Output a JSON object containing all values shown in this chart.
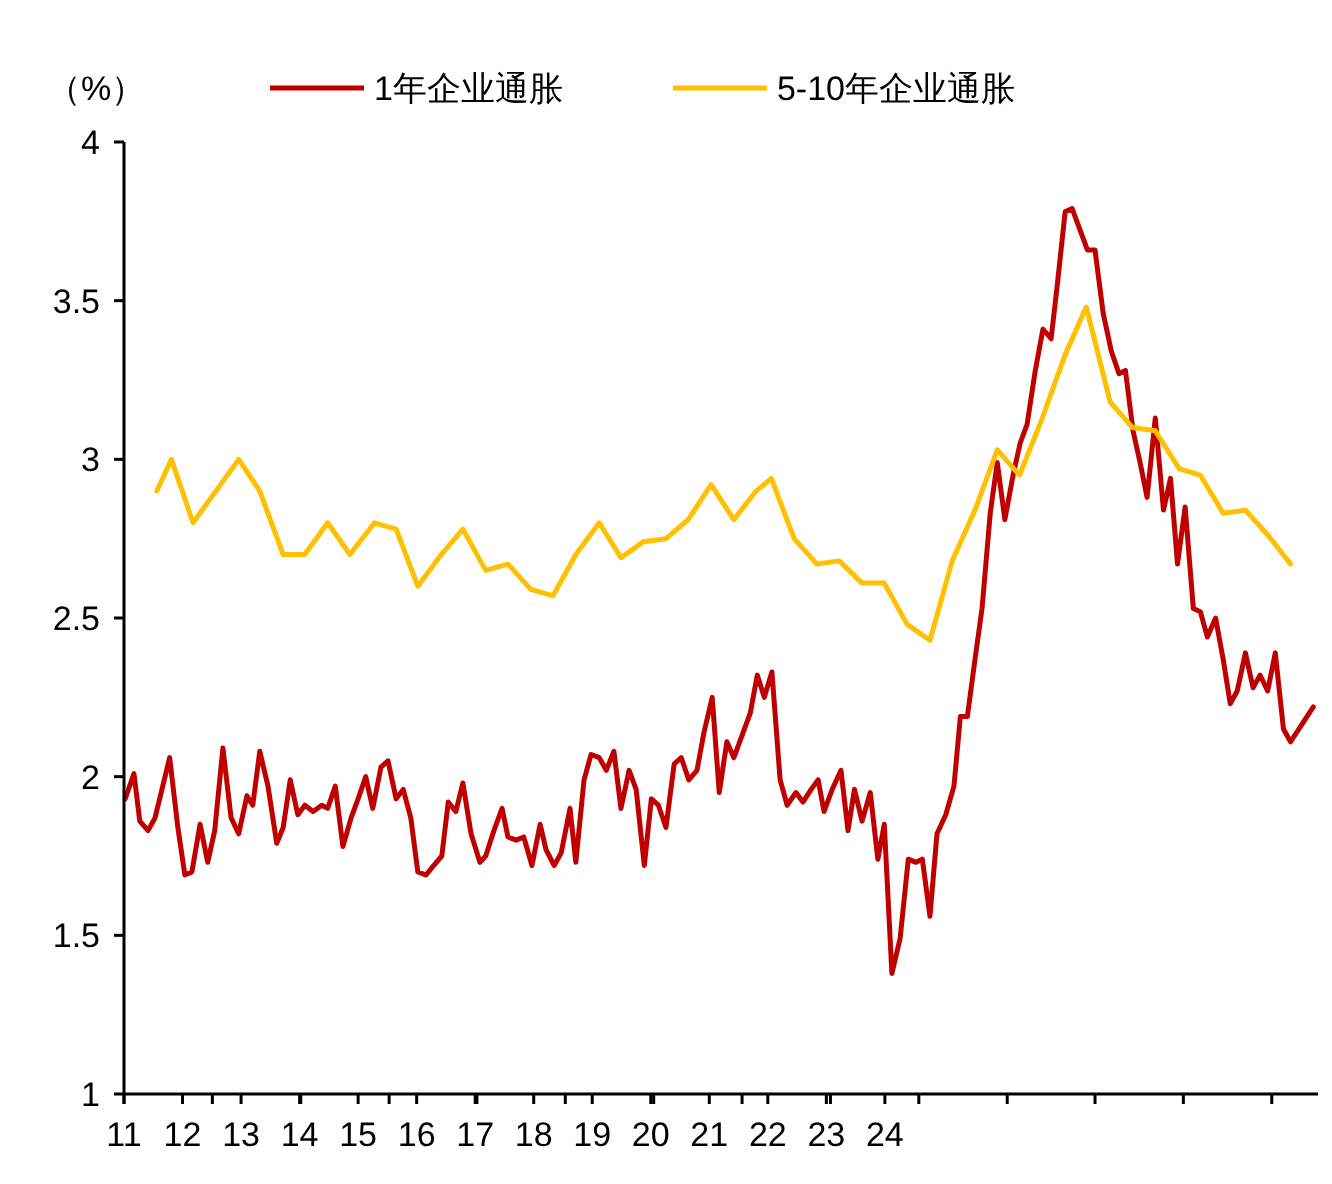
{
  "chart_data": {
    "type": "line",
    "ylabel": "（%）",
    "legend": "top",
    "grid": false,
    "xlim": [
      11,
      31.4
    ],
    "ylim": [
      1,
      4
    ],
    "yticks": [
      1,
      1.5,
      2,
      2.5,
      3,
      3.5,
      4
    ],
    "xticks": [
      {
        "value": 11,
        "label": null
      },
      {
        "value": 12.51,
        "label": null
      },
      {
        "value": 14.02,
        "label": null
      },
      {
        "value": 15.53,
        "label": null
      },
      {
        "value": 17.03,
        "label": null
      },
      {
        "value": 18.54,
        "label": null
      },
      {
        "value": 20.05,
        "label": null
      },
      {
        "value": 21.56,
        "label": null
      },
      {
        "value": 23.07,
        "label": null
      },
      {
        "value": 24.58,
        "label": null
      },
      {
        "value": 26.09,
        "label": null
      },
      {
        "value": 27.59,
        "label": null
      },
      {
        "value": 29.1,
        "label": null
      },
      {
        "value": 30.61,
        "label": null
      },
      11,
      12,
      13,
      14,
      15,
      16,
      17,
      18,
      19,
      20,
      21,
      22,
      23,
      24
    ],
    "series": [
      {
        "name": "1年企业通胀",
        "color": "#c00000",
        "x": [
          11.02,
          11.17,
          11.27,
          11.41,
          11.53,
          11.78,
          11.92,
          12.04,
          12.16,
          12.3,
          12.43,
          12.55,
          12.69,
          12.83,
          12.96,
          13.1,
          13.2,
          13.32,
          13.46,
          13.61,
          13.72,
          13.84,
          13.97,
          14.09,
          14.23,
          14.38,
          14.48,
          14.61,
          14.74,
          14.88,
          15.0,
          15.13,
          15.25,
          15.39,
          15.51,
          15.65,
          15.77,
          15.9,
          16.02,
          16.16,
          16.29,
          16.43,
          16.54,
          16.67,
          16.79,
          16.93,
          17.08,
          17.18,
          17.32,
          17.46,
          17.56,
          17.7,
          17.83,
          17.97,
          18.11,
          18.21,
          18.35,
          18.47,
          18.62,
          18.72,
          18.86,
          18.98,
          19.12,
          19.24,
          19.37,
          19.49,
          19.63,
          19.75,
          19.89,
          20.01,
          20.13,
          20.26,
          20.4,
          20.52,
          20.65,
          20.79,
          20.91,
          21.05,
          21.17,
          21.3,
          21.42,
          21.56,
          21.7,
          21.82,
          21.94,
          22.07,
          22.21,
          22.33,
          22.48,
          22.6,
          22.74,
          22.86,
          22.96,
          23.1,
          23.25,
          23.37,
          23.48,
          23.61,
          23.75,
          23.88,
          23.99,
          24.12,
          24.26,
          24.4,
          24.53,
          24.64,
          24.77,
          24.89,
          25.04,
          25.18,
          25.29,
          25.41,
          25.54,
          25.66,
          25.8,
          25.92,
          26.05,
          26.19,
          26.31,
          26.43,
          26.57,
          26.7,
          26.84,
          26.94,
          27.08,
          27.2,
          27.34,
          27.46,
          27.59,
          27.73,
          27.87,
          28.0,
          28.11,
          28.24,
          28.36,
          28.48,
          28.62,
          28.76,
          28.88,
          29.0,
          29.13,
          29.27,
          29.39,
          29.51,
          29.65,
          29.78,
          29.9,
          30.02,
          30.16,
          30.29,
          30.41,
          30.54,
          30.67,
          30.81,
          30.93,
          31.32
        ],
        "values": [
          1.93,
          2.01,
          1.86,
          1.83,
          1.87,
          2.06,
          1.84,
          1.69,
          1.7,
          1.85,
          1.73,
          1.83,
          2.09,
          1.87,
          1.82,
          1.94,
          1.91,
          2.08,
          1.97,
          1.79,
          1.84,
          1.99,
          1.88,
          1.91,
          1.89,
          1.91,
          1.9,
          1.97,
          1.78,
          1.87,
          1.93,
          2.0,
          1.9,
          2.03,
          2.05,
          1.93,
          1.96,
          1.87,
          1.7,
          1.69,
          1.72,
          1.75,
          1.92,
          1.89,
          1.98,
          1.82,
          1.73,
          1.75,
          1.83,
          1.9,
          1.81,
          1.8,
          1.81,
          1.72,
          1.85,
          1.77,
          1.72,
          1.76,
          1.9,
          1.73,
          1.99,
          2.07,
          2.06,
          2.02,
          2.08,
          1.9,
          2.02,
          1.96,
          1.72,
          1.93,
          1.91,
          1.84,
          2.04,
          2.06,
          1.99,
          2.02,
          2.14,
          2.25,
          1.95,
          2.11,
          2.06,
          2.13,
          2.2,
          2.32,
          2.25,
          2.33,
          1.99,
          1.91,
          1.95,
          1.92,
          1.96,
          1.99,
          1.89,
          1.96,
          2.02,
          1.83,
          1.96,
          1.86,
          1.95,
          1.74,
          1.85,
          1.38,
          1.49,
          1.74,
          1.73,
          1.74,
          1.56,
          1.82,
          1.88,
          1.97,
          2.19,
          2.19,
          2.37,
          2.53,
          2.83,
          2.99,
          2.81,
          2.95,
          3.05,
          3.11,
          3.28,
          3.41,
          3.38,
          3.54,
          3.78,
          3.79,
          3.72,
          3.66,
          3.66,
          3.46,
          3.34,
          3.27,
          3.28,
          3.09,
          2.99,
          2.88,
          3.13,
          2.84,
          2.94,
          2.67,
          2.85,
          2.53,
          2.52,
          2.44,
          2.5,
          2.37,
          2.23,
          2.27,
          2.39,
          2.28,
          2.32,
          2.27,
          2.39,
          2.15,
          2.11,
          2.22
        ]
      },
      {
        "name": "5-10年企业通胀",
        "color": "#ffc000",
        "x": [
          11.56,
          11.81,
          12.18,
          12.96,
          13.32,
          13.72,
          14.09,
          14.48,
          14.86,
          15.28,
          15.65,
          16.02,
          16.42,
          16.79,
          17.18,
          17.56,
          17.95,
          18.33,
          18.72,
          19.12,
          19.49,
          19.87,
          20.26,
          20.64,
          21.03,
          21.42,
          21.8,
          22.06,
          22.45,
          22.84,
          23.22,
          23.61,
          23.99,
          24.38,
          24.77,
          25.15,
          25.54,
          25.92,
          26.3,
          26.69,
          27.08,
          27.44,
          27.85,
          28.23,
          28.62,
          29.03,
          29.39,
          29.78,
          30.16,
          30.55,
          30.93
        ],
        "values": [
          2.9,
          3.0,
          2.8,
          3.0,
          2.9,
          2.7,
          2.7,
          2.8,
          2.7,
          2.8,
          2.78,
          2.6,
          2.7,
          2.78,
          2.65,
          2.67,
          2.59,
          2.57,
          2.7,
          2.8,
          2.69,
          2.74,
          2.75,
          2.81,
          2.92,
          2.81,
          2.9,
          2.94,
          2.75,
          2.67,
          2.68,
          2.61,
          2.61,
          2.48,
          2.43,
          2.68,
          2.84,
          3.03,
          2.95,
          3.13,
          3.33,
          3.48,
          3.18,
          3.1,
          3.09,
          2.97,
          2.95,
          2.83,
          2.84,
          2.76,
          2.67
        ]
      }
    ]
  }
}
